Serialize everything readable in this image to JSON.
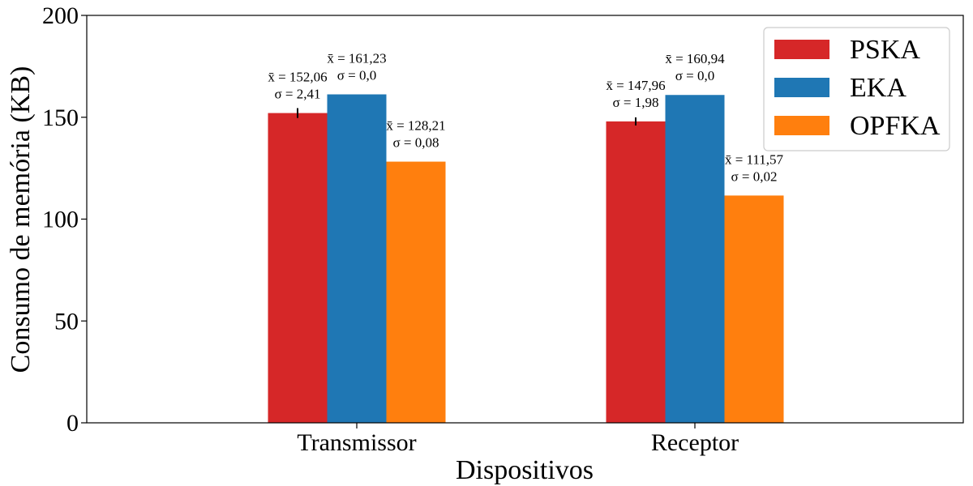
{
  "chart_data": {
    "type": "bar",
    "xlabel": "Dispositivos",
    "ylabel": "Consumo de memória (KB)",
    "ylim": [
      0,
      200
    ],
    "yticks": [
      0,
      50,
      100,
      150,
      200
    ],
    "categories": [
      "Transmissor",
      "Receptor"
    ],
    "grid": false,
    "legend_position": "top-right",
    "series": [
      {
        "name": "PSKA",
        "color": "#d62728",
        "values": [
          152.06,
          147.96
        ],
        "std": [
          2.41,
          1.98
        ],
        "annotations": [
          {
            "mean": "x̄ = 152,06",
            "sd": "σ =  2,41"
          },
          {
            "mean": "x̄ = 147,96",
            "sd": "σ =  1,98"
          }
        ]
      },
      {
        "name": "EKA",
        "color": "#1f77b4",
        "values": [
          161.23,
          160.94
        ],
        "std": [
          0.0,
          0.0
        ],
        "annotations": [
          {
            "mean": "x̄ = 161,23",
            "sd": "σ =  0,0"
          },
          {
            "mean": "x̄ = 160,94",
            "sd": "σ =  0,0"
          }
        ]
      },
      {
        "name": "OPFKA",
        "color": "#ff7f0e",
        "values": [
          128.21,
          111.57
        ],
        "std": [
          0.08,
          0.02
        ],
        "annotations": [
          {
            "mean": "x̄ = 128,21",
            "sd": "σ =  0,08"
          },
          {
            "mean": "x̄ = 111,57",
            "sd": "σ =  0,02"
          }
        ]
      }
    ]
  }
}
